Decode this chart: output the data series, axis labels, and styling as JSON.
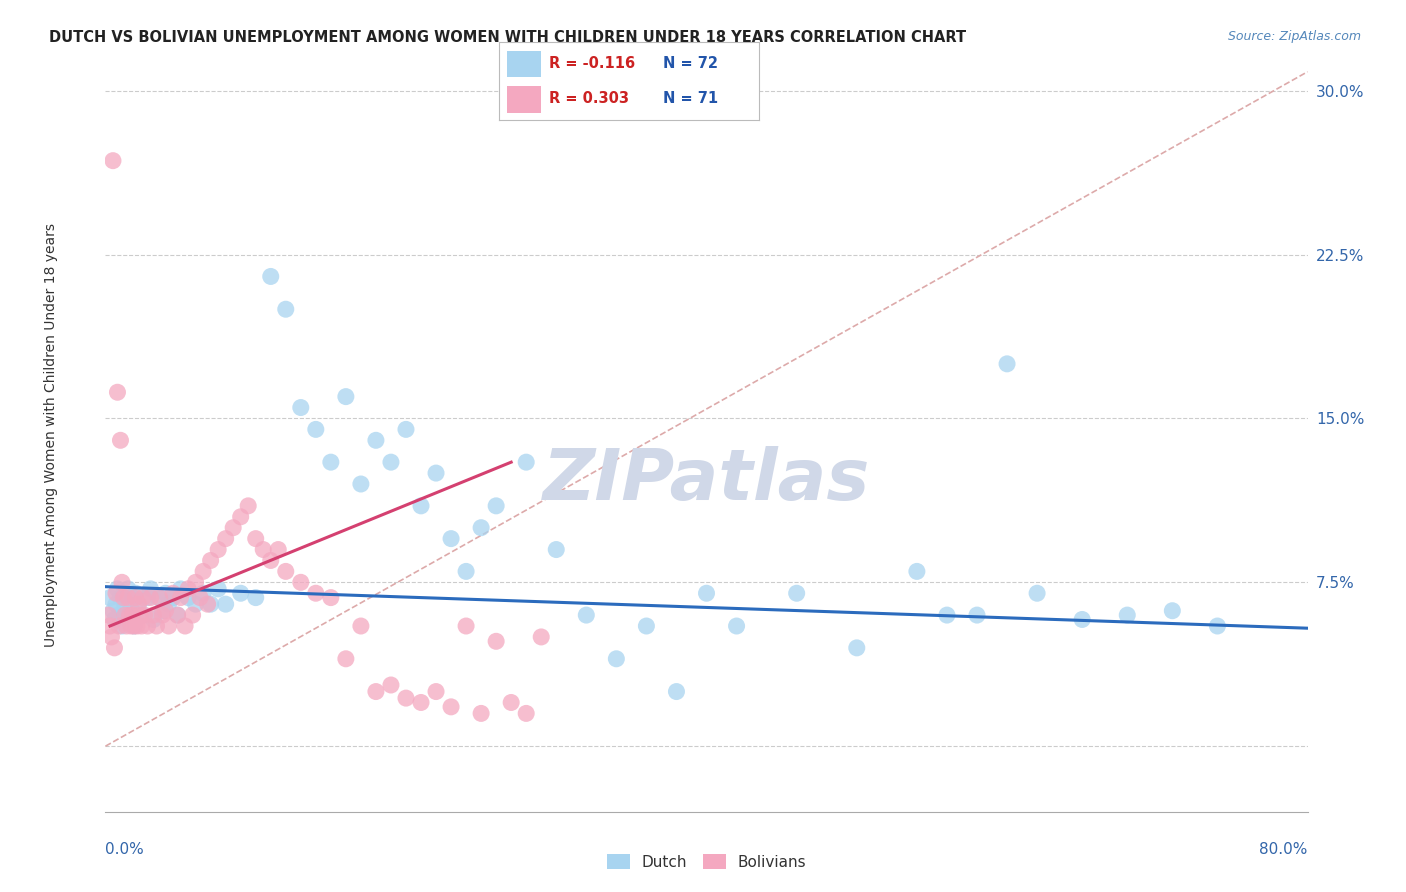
{
  "title": "DUTCH VS BOLIVIAN UNEMPLOYMENT AMONG WOMEN WITH CHILDREN UNDER 18 YEARS CORRELATION CHART",
  "source": "Source: ZipAtlas.com",
  "ylabel": "Unemployment Among Women with Children Under 18 years",
  "ytick_values": [
    0.0,
    0.075,
    0.15,
    0.225,
    0.3
  ],
  "ytick_labels": [
    "",
    "7.5%",
    "15.0%",
    "22.5%",
    "30.0%"
  ],
  "xmin": 0.0,
  "xmax": 0.8,
  "ymin": -0.03,
  "ymax": 0.315,
  "legend_r_dutch": "R = -0.116",
  "legend_n_dutch": "N = 72",
  "legend_r_bolivian": "R = 0.303",
  "legend_n_bolivian": "N = 71",
  "dutch_scatter_color": "#A8D4F0",
  "bolivian_scatter_color": "#F4A8C0",
  "dutch_line_color": "#2B6BBD",
  "bolivian_line_color": "#D44070",
  "diag_color": "#DDAAAA",
  "grid_color": "#CCCCCC",
  "title_color": "#222222",
  "source_color": "#5588BB",
  "ytick_color": "#3366AA",
  "xlabel_color": "#3366AA",
  "ylabel_color": "#333333",
  "legend_r_color": "#CC2222",
  "legend_n_color": "#2255AA",
  "watermark_color": "#D0D8E8",
  "dutch_points_x": [
    0.003,
    0.005,
    0.006,
    0.007,
    0.008,
    0.009,
    0.01,
    0.011,
    0.012,
    0.013,
    0.014,
    0.015,
    0.016,
    0.017,
    0.018,
    0.019,
    0.02,
    0.022,
    0.025,
    0.028,
    0.03,
    0.032,
    0.035,
    0.038,
    0.04,
    0.042,
    0.045,
    0.048,
    0.05,
    0.055,
    0.06,
    0.065,
    0.07,
    0.075,
    0.08,
    0.09,
    0.1,
    0.11,
    0.12,
    0.13,
    0.14,
    0.15,
    0.16,
    0.17,
    0.18,
    0.19,
    0.2,
    0.21,
    0.22,
    0.23,
    0.24,
    0.25,
    0.26,
    0.28,
    0.3,
    0.32,
    0.34,
    0.36,
    0.38,
    0.4,
    0.42,
    0.46,
    0.5,
    0.54,
    0.56,
    0.58,
    0.6,
    0.62,
    0.65,
    0.68,
    0.71,
    0.74
  ],
  "dutch_points_y": [
    0.068,
    0.062,
    0.058,
    0.065,
    0.072,
    0.06,
    0.068,
    0.055,
    0.07,
    0.065,
    0.06,
    0.072,
    0.058,
    0.063,
    0.068,
    0.055,
    0.07,
    0.065,
    0.06,
    0.068,
    0.072,
    0.058,
    0.068,
    0.062,
    0.07,
    0.065,
    0.068,
    0.06,
    0.072,
    0.068,
    0.065,
    0.07,
    0.065,
    0.072,
    0.065,
    0.07,
    0.068,
    0.215,
    0.2,
    0.155,
    0.145,
    0.13,
    0.16,
    0.12,
    0.14,
    0.13,
    0.145,
    0.11,
    0.125,
    0.095,
    0.08,
    0.1,
    0.11,
    0.13,
    0.09,
    0.06,
    0.04,
    0.055,
    0.025,
    0.07,
    0.055,
    0.07,
    0.045,
    0.08,
    0.06,
    0.06,
    0.175,
    0.07,
    0.058,
    0.06,
    0.062,
    0.055
  ],
  "bolivian_points_x": [
    0.002,
    0.003,
    0.004,
    0.005,
    0.006,
    0.007,
    0.008,
    0.009,
    0.01,
    0.011,
    0.012,
    0.013,
    0.014,
    0.015,
    0.016,
    0.017,
    0.018,
    0.019,
    0.02,
    0.021,
    0.022,
    0.023,
    0.024,
    0.025,
    0.026,
    0.028,
    0.03,
    0.032,
    0.034,
    0.036,
    0.038,
    0.04,
    0.042,
    0.045,
    0.048,
    0.05,
    0.053,
    0.055,
    0.058,
    0.06,
    0.063,
    0.065,
    0.068,
    0.07,
    0.075,
    0.08,
    0.085,
    0.09,
    0.095,
    0.1,
    0.105,
    0.11,
    0.115,
    0.12,
    0.13,
    0.14,
    0.15,
    0.16,
    0.17,
    0.18,
    0.19,
    0.2,
    0.21,
    0.22,
    0.23,
    0.24,
    0.25,
    0.26,
    0.27,
    0.28,
    0.29
  ],
  "bolivian_points_y": [
    0.06,
    0.055,
    0.05,
    0.268,
    0.045,
    0.07,
    0.162,
    0.055,
    0.14,
    0.075,
    0.068,
    0.06,
    0.055,
    0.068,
    0.06,
    0.055,
    0.06,
    0.055,
    0.068,
    0.055,
    0.065,
    0.06,
    0.055,
    0.068,
    0.06,
    0.055,
    0.068,
    0.06,
    0.055,
    0.068,
    0.06,
    0.062,
    0.055,
    0.07,
    0.06,
    0.068,
    0.055,
    0.072,
    0.06,
    0.075,
    0.068,
    0.08,
    0.065,
    0.085,
    0.09,
    0.095,
    0.1,
    0.105,
    0.11,
    0.095,
    0.09,
    0.085,
    0.09,
    0.08,
    0.075,
    0.07,
    0.068,
    0.04,
    0.055,
    0.025,
    0.028,
    0.022,
    0.02,
    0.025,
    0.018,
    0.055,
    0.015,
    0.048,
    0.02,
    0.015,
    0.05
  ]
}
